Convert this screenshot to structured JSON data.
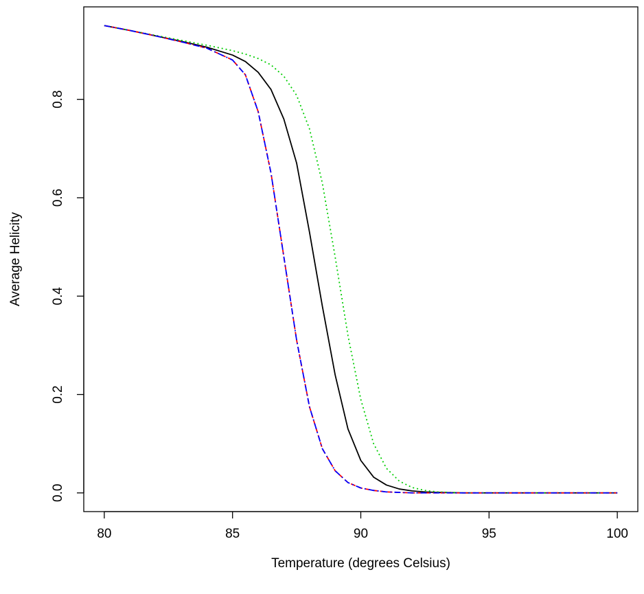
{
  "chart_data": {
    "type": "line",
    "title": "",
    "xlabel": "Temperature (degrees Celsius)",
    "ylabel": "Average Helicity",
    "xlim": [
      79.2,
      100.8
    ],
    "ylim": [
      -0.038,
      0.988
    ],
    "xticks": [
      80,
      85,
      90,
      95,
      100
    ],
    "xtick_labels": [
      "80",
      "85",
      "90",
      "95",
      "100"
    ],
    "yticks": [
      0.0,
      0.2,
      0.4,
      0.6,
      0.8
    ],
    "ytick_labels": [
      "0.0",
      "0.2",
      "0.4",
      "0.6",
      "0.8"
    ],
    "grid": false,
    "legend": "none",
    "x": [
      80,
      81,
      82,
      83,
      84,
      85,
      85.5,
      86,
      86.5,
      87,
      87.5,
      88,
      88.5,
      89,
      89.5,
      90,
      90.5,
      91,
      91.5,
      92,
      92.5,
      93,
      94,
      95,
      96,
      97,
      98,
      99,
      100
    ],
    "series": [
      {
        "color": "#000000",
        "dash": "solid",
        "values": [
          0.95,
          0.94,
          0.929,
          0.918,
          0.906,
          0.89,
          0.877,
          0.855,
          0.82,
          0.76,
          0.67,
          0.53,
          0.38,
          0.24,
          0.13,
          0.066,
          0.032,
          0.016,
          0.008,
          0.004,
          0.002,
          0.001,
          0.0,
          0.0,
          0.0,
          0.0,
          0.0,
          0.0,
          0.0
        ]
      },
      {
        "color": "#00cd00",
        "dash": "dotted",
        "values": [
          0.95,
          0.94,
          0.93,
          0.92,
          0.91,
          0.899,
          0.892,
          0.883,
          0.87,
          0.847,
          0.808,
          0.74,
          0.63,
          0.48,
          0.32,
          0.19,
          0.1,
          0.05,
          0.024,
          0.011,
          0.005,
          0.002,
          0.0,
          0.0,
          0.0,
          0.0,
          0.0,
          0.0,
          0.0
        ]
      },
      {
        "color": "#ff0000",
        "dash": "dashed",
        "values": [
          0.95,
          0.94,
          0.929,
          0.917,
          0.904,
          0.88,
          0.85,
          0.775,
          0.65,
          0.48,
          0.31,
          0.175,
          0.09,
          0.045,
          0.021,
          0.01,
          0.005,
          0.002,
          0.001,
          0.0,
          0.0,
          0.0,
          0.0,
          0.0,
          0.0,
          0.0,
          0.0,
          0.0,
          0.0
        ]
      },
      {
        "color": "#0000ff",
        "dash": "dashdot",
        "values": [
          0.95,
          0.94,
          0.929,
          0.917,
          0.904,
          0.88,
          0.85,
          0.775,
          0.65,
          0.48,
          0.31,
          0.175,
          0.09,
          0.045,
          0.021,
          0.01,
          0.005,
          0.002,
          0.001,
          0.0,
          0.0,
          0.0,
          0.0,
          0.0,
          0.0,
          0.0,
          0.0,
          0.0,
          0.0
        ]
      }
    ]
  }
}
